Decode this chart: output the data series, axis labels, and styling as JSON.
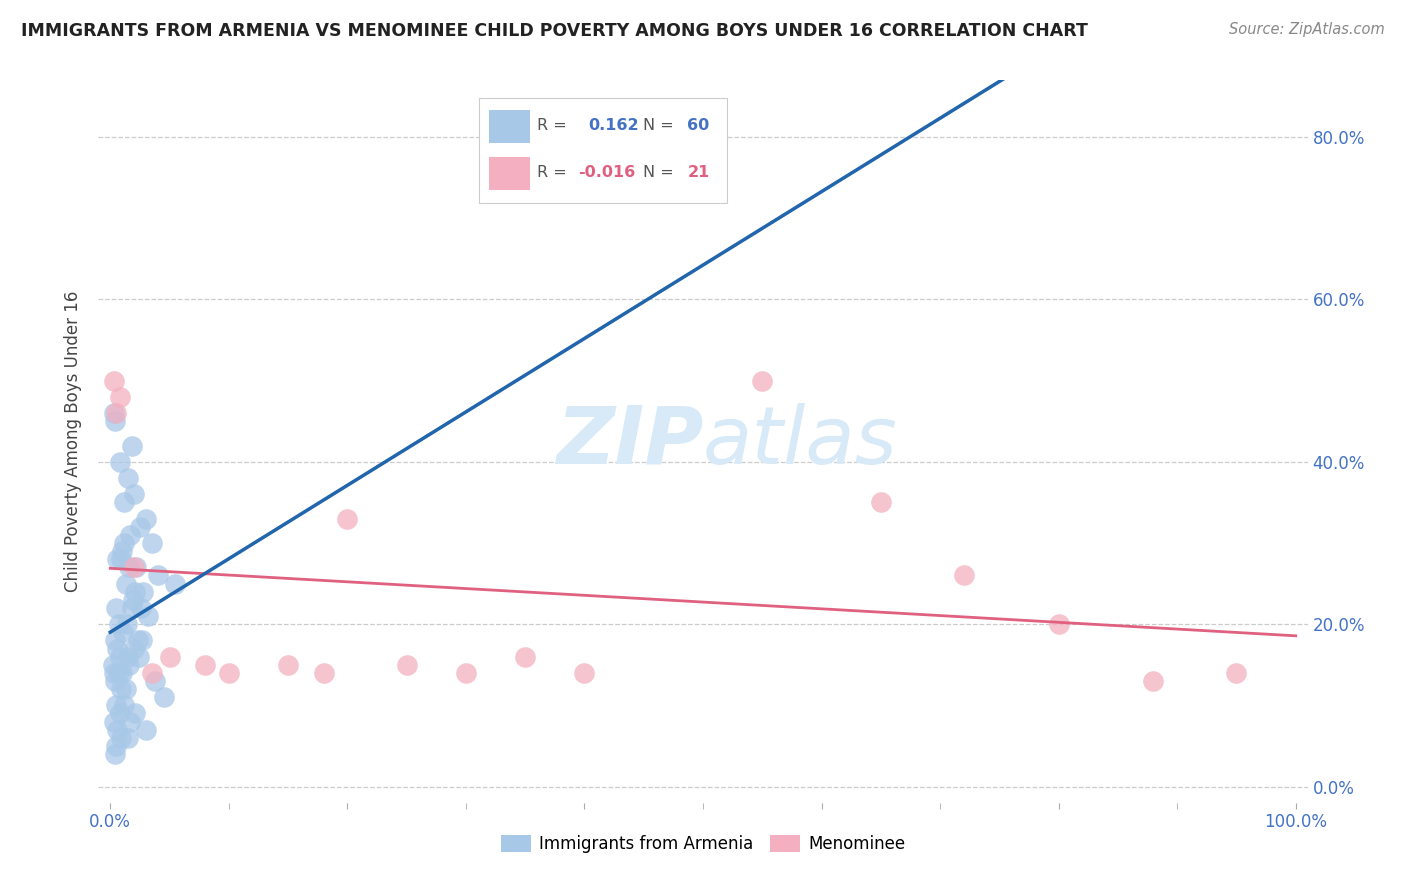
{
  "title": "IMMIGRANTS FROM ARMENIA VS MENOMINEE CHILD POVERTY AMONG BOYS UNDER 16 CORRELATION CHART",
  "source": "Source: ZipAtlas.com",
  "ylabel": "Child Poverty Among Boys Under 16",
  "r_armenia": 0.162,
  "n_armenia": 60,
  "r_menominee": -0.016,
  "n_menominee": 21,
  "legend_labels": [
    "Immigrants from Armenia",
    "Menominee"
  ],
  "color_armenia": "#a8c8e8",
  "color_menominee": "#f4b0c0",
  "line_color_armenia_solid": "#2166ac",
  "line_color_armenia_dashed": "#a8c8e8",
  "line_color_menominee": "#e06080",
  "watermark_color": "#d8eaf8",
  "background_color": "#ffffff",
  "arm_x": [
    0.4,
    1.2,
    0.8,
    2.5,
    1.5,
    3.5,
    2.0,
    1.8,
    0.6,
    0.3,
    1.0,
    2.2,
    1.7,
    3.0,
    4.0,
    5.5,
    2.8,
    1.2,
    0.9,
    1.6,
    0.5,
    1.3,
    2.1,
    0.7,
    1.9,
    2.6,
    3.2,
    0.4,
    0.8,
    1.1,
    0.2,
    0.6,
    1.4,
    2.3,
    0.3,
    1.8,
    0.9,
    2.0,
    1.5,
    0.7,
    0.4,
    1.6,
    2.4,
    0.5,
    1.0,
    3.8,
    2.7,
    1.3,
    0.8,
    4.5,
    0.3,
    0.6,
    1.2,
    0.9,
    2.1,
    1.7,
    0.5,
    0.4,
    3.0,
    1.5
  ],
  "arm_y": [
    45.0,
    35.0,
    40.0,
    32.0,
    38.0,
    30.0,
    36.0,
    42.0,
    28.0,
    46.0,
    29.0,
    27.0,
    31.0,
    33.0,
    26.0,
    25.0,
    24.0,
    30.0,
    28.0,
    27.0,
    22.0,
    25.0,
    24.0,
    20.0,
    23.0,
    22.0,
    21.0,
    18.0,
    16.0,
    19.0,
    15.0,
    17.0,
    20.0,
    18.0,
    14.0,
    22.0,
    12.0,
    17.0,
    16.0,
    14.0,
    13.0,
    15.0,
    16.0,
    10.0,
    14.0,
    13.0,
    18.0,
    12.0,
    9.0,
    11.0,
    8.0,
    7.0,
    10.0,
    6.0,
    9.0,
    8.0,
    5.0,
    4.0,
    7.0,
    6.0
  ],
  "men_x": [
    0.3,
    0.8,
    0.5,
    2.0,
    3.5,
    5.0,
    8.0,
    10.0,
    15.0,
    18.0,
    25.0,
    30.0,
    35.0,
    40.0,
    55.0,
    65.0,
    72.0,
    80.0,
    88.0,
    95.0,
    20.0
  ],
  "men_y": [
    50.0,
    48.0,
    46.0,
    27.0,
    14.0,
    16.0,
    15.0,
    14.0,
    15.0,
    14.0,
    15.0,
    14.0,
    16.0,
    14.0,
    50.0,
    35.0,
    26.0,
    20.0,
    13.0,
    14.0,
    33.0
  ]
}
